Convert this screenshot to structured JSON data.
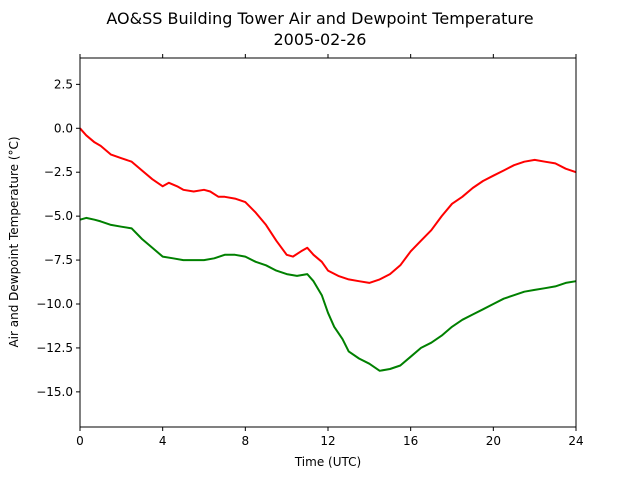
{
  "chart_data": {
    "type": "line",
    "title": "AO&SS Building Tower Air and Dewpoint Temperature",
    "subtitle": "2005-02-26",
    "xlabel": "Time (UTC)",
    "ylabel": "Air and Dewpoint Temperature (°C)",
    "xlim": [
      0,
      24
    ],
    "ylim": [
      -17,
      4
    ],
    "xticks": [
      0,
      4,
      8,
      12,
      16,
      20,
      24
    ],
    "xtick_labels": [
      "0",
      "4",
      "8",
      "12",
      "16",
      "20",
      "24"
    ],
    "yticks": [
      2.5,
      0,
      -2.5,
      -5,
      -7.5,
      -10,
      -12.5,
      -15
    ],
    "ytick_labels": [
      "2.5",
      "0.0",
      "−2.5",
      "−5.0",
      "−7.5",
      "−10.0",
      "−12.5",
      "−15.0"
    ],
    "grid": false,
    "legend": "none",
    "series": [
      {
        "color": "#ff0000",
        "x": [
          0,
          0.3,
          0.7,
          1.0,
          1.5,
          2.0,
          2.5,
          3.0,
          3.5,
          4.0,
          4.3,
          4.7,
          5.0,
          5.5,
          6.0,
          6.3,
          6.7,
          7.0,
          7.5,
          8.0,
          8.5,
          9.0,
          9.5,
          10.0,
          10.3,
          10.7,
          11.0,
          11.3,
          11.7,
          12.0,
          12.5,
          13.0,
          13.5,
          14.0,
          14.5,
          15.0,
          15.5,
          16.0,
          16.5,
          17.0,
          17.5,
          18.0,
          18.5,
          19.0,
          19.5,
          20.0,
          20.5,
          21.0,
          21.5,
          22.0,
          22.5,
          23.0,
          23.5,
          24.0
        ],
        "values": [
          0.0,
          -0.4,
          -0.8,
          -1.0,
          -1.5,
          -1.7,
          -1.9,
          -2.4,
          -2.9,
          -3.3,
          -3.1,
          -3.3,
          -3.5,
          -3.6,
          -3.5,
          -3.6,
          -3.9,
          -3.9,
          -4.0,
          -4.2,
          -4.8,
          -5.5,
          -6.4,
          -7.2,
          -7.3,
          -7.0,
          -6.8,
          -7.2,
          -7.6,
          -8.1,
          -8.4,
          -8.6,
          -8.7,
          -8.8,
          -8.6,
          -8.3,
          -7.8,
          -7.0,
          -6.4,
          -5.8,
          -5.0,
          -4.3,
          -3.9,
          -3.4,
          -3.0,
          -2.7,
          -2.4,
          -2.1,
          -1.9,
          -1.8,
          -1.9,
          -2.0,
          -2.3,
          -2.5
        ]
      },
      {
        "color": "#008000",
        "x": [
          0,
          0.3,
          0.7,
          1.0,
          1.5,
          2.0,
          2.5,
          3.0,
          3.5,
          4.0,
          4.5,
          5.0,
          5.5,
          6.0,
          6.5,
          7.0,
          7.5,
          8.0,
          8.5,
          9.0,
          9.5,
          10.0,
          10.5,
          11.0,
          11.3,
          11.7,
          12.0,
          12.3,
          12.7,
          13.0,
          13.5,
          14.0,
          14.5,
          15.0,
          15.5,
          16.0,
          16.5,
          17.0,
          17.5,
          18.0,
          18.5,
          19.0,
          19.5,
          20.0,
          20.5,
          21.0,
          21.5,
          22.0,
          22.5,
          23.0,
          23.5,
          24.0
        ],
        "values": [
          -5.2,
          -5.1,
          -5.2,
          -5.3,
          -5.5,
          -5.6,
          -5.7,
          -6.3,
          -6.8,
          -7.3,
          -7.4,
          -7.5,
          -7.5,
          -7.5,
          -7.4,
          -7.2,
          -7.2,
          -7.3,
          -7.6,
          -7.8,
          -8.1,
          -8.3,
          -8.4,
          -8.3,
          -8.7,
          -9.5,
          -10.5,
          -11.3,
          -12.0,
          -12.7,
          -13.1,
          -13.4,
          -13.8,
          -13.7,
          -13.5,
          -13.0,
          -12.5,
          -12.2,
          -11.8,
          -11.3,
          -10.9,
          -10.6,
          -10.3,
          -10.0,
          -9.7,
          -9.5,
          -9.3,
          -9.2,
          -9.1,
          -9.0,
          -8.8,
          -8.7
        ]
      }
    ]
  }
}
